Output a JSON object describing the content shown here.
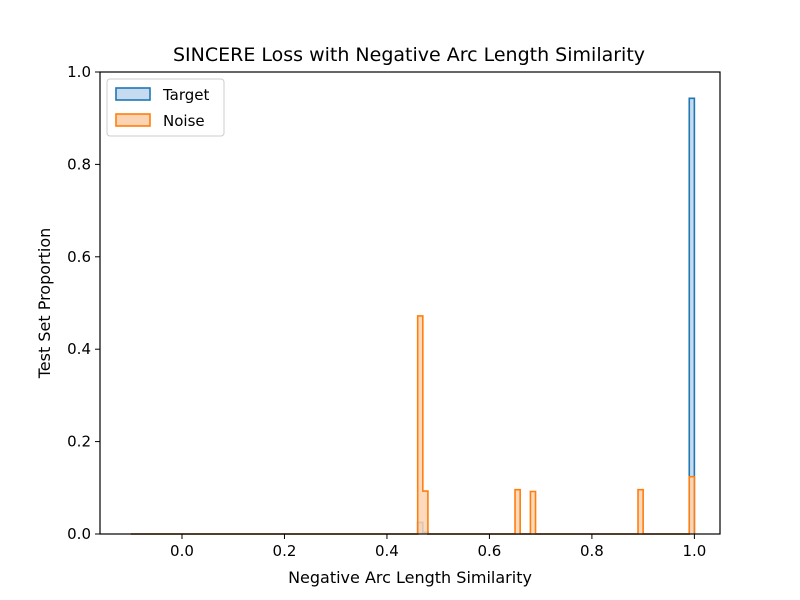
{
  "chart_data": {
    "type": "histogram",
    "title": "SINCERE Loss with Negative Arc Length Similarity",
    "xlabel": "Negative Arc Length Similarity",
    "ylabel": "Test Set Proportion",
    "xlim": [
      -0.16,
      1.05
    ],
    "ylim": [
      0,
      1.0
    ],
    "xticks": [
      0.0,
      0.2,
      0.4,
      0.6,
      0.8,
      1.0
    ],
    "xtick_labels": [
      "0.0",
      "0.2",
      "0.4",
      "0.6",
      "0.8",
      "1.0"
    ],
    "yticks": [
      0.0,
      0.2,
      0.4,
      0.6,
      0.8,
      1.0
    ],
    "ytick_labels": [
      "0.0",
      "0.2",
      "0.4",
      "0.6",
      "0.8",
      "1.0"
    ],
    "grid": false,
    "legend_position": "upper-left",
    "histtype": "stepfilled",
    "bin_width": 0.01,
    "x_start": -0.1,
    "x_end": 1.0,
    "series": [
      {
        "name": "Target",
        "color": "#1f77b4",
        "fill": "#c6dbef",
        "bins": [
          {
            "x": 0.46,
            "value": 0.025
          },
          {
            "x": 0.47,
            "value": 0.004
          },
          {
            "x": 0.99,
            "value": 0.943
          }
        ]
      },
      {
        "name": "Noise",
        "color": "#ff7f0e",
        "fill": "#fdd4b3",
        "bins": [
          {
            "x": 0.46,
            "value": 0.472
          },
          {
            "x": 0.47,
            "value": 0.093
          },
          {
            "x": 0.65,
            "value": 0.096
          },
          {
            "x": 0.68,
            "value": 0.092
          },
          {
            "x": 0.89,
            "value": 0.096
          },
          {
            "x": 0.99,
            "value": 0.124
          }
        ]
      }
    ]
  }
}
